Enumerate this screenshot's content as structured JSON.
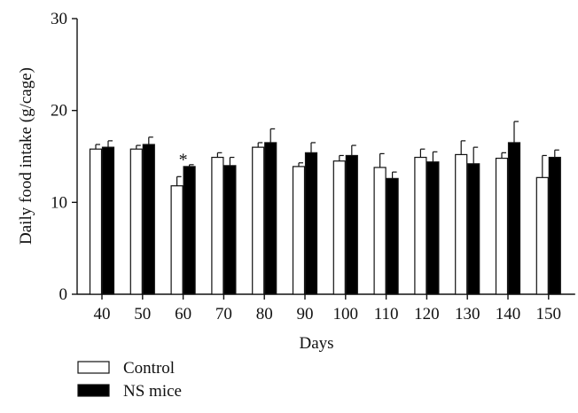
{
  "chart_data": {
    "type": "bar",
    "ylabel": "Daily food intake (g/cage)",
    "xlabel": "Days",
    "ylim": [
      0,
      30
    ],
    "yticks": [
      "0",
      "10",
      "20",
      "30"
    ],
    "categories": [
      "40",
      "50",
      "60",
      "70",
      "80",
      "90",
      "100",
      "110",
      "120",
      "130",
      "140",
      "150"
    ],
    "series": [
      {
        "name": "Control",
        "fill": "#ffffff",
        "values": [
          15.8,
          15.8,
          11.8,
          14.9,
          16.0,
          13.9,
          14.5,
          13.8,
          14.9,
          15.2,
          14.8,
          12.7
        ],
        "errors": [
          0.5,
          0.4,
          1.0,
          0.5,
          0.5,
          0.4,
          0.6,
          1.5,
          0.9,
          1.5,
          0.6,
          2.4
        ]
      },
      {
        "name": "NS mice",
        "fill": "#000000",
        "values": [
          16.0,
          16.3,
          13.9,
          14.0,
          16.5,
          15.4,
          15.1,
          12.6,
          14.4,
          14.2,
          16.5,
          14.9
        ],
        "errors": [
          0.7,
          0.8,
          0.2,
          0.9,
          1.5,
          1.1,
          1.1,
          0.7,
          1.1,
          1.8,
          2.3,
          0.8
        ]
      }
    ],
    "annotations": [
      {
        "text": "*",
        "category": "60",
        "value": 14.8
      }
    ],
    "legend_position": "bottom-left",
    "grid": false
  }
}
